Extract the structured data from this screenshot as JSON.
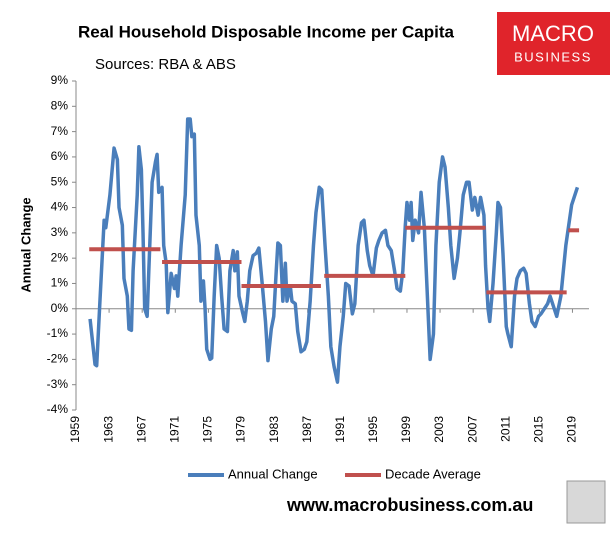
{
  "chart_data": {
    "type": "line",
    "title": "Real Household Disposable Income per Capita",
    "subtitle": "Sources: RBA & ABS",
    "y_label": "Annual Change",
    "xlim": [
      1959,
      2021
    ],
    "xticks": [
      1959,
      1963,
      1967,
      1971,
      1975,
      1979,
      1983,
      1987,
      1991,
      1995,
      1999,
      2003,
      2007,
      2011,
      2015,
      2019
    ],
    "ylim": [
      -4,
      9
    ],
    "yticks": [
      {
        "value": -4,
        "label": "-4%"
      },
      {
        "value": -3,
        "label": "-3%"
      },
      {
        "value": -2,
        "label": "-2%"
      },
      {
        "value": -1,
        "label": "-1%"
      },
      {
        "value": 0,
        "label": "0%"
      },
      {
        "value": 1,
        "label": "1%"
      },
      {
        "value": 2,
        "label": "2%"
      },
      {
        "value": 3,
        "label": "3%"
      },
      {
        "value": 4,
        "label": "4%"
      },
      {
        "value": 5,
        "label": "5%"
      },
      {
        "value": 6,
        "label": "6%"
      },
      {
        "value": 7,
        "label": "7%"
      },
      {
        "value": 8,
        "label": "8%"
      },
      {
        "value": 9,
        "label": "9%"
      }
    ],
    "legend": "bottom",
    "series": [
      {
        "name": "Annual Change",
        "color": "#4a7ebb",
        "x": [
          1960.7,
          1961.3,
          1961.5,
          1961.9,
          1962.4,
          1962.6,
          1963.1,
          1963.6,
          1964.0,
          1964.2,
          1964.6,
          1964.8,
          1965.2,
          1965.4,
          1965.7,
          1965.9,
          1966.4,
          1966.6,
          1966.9,
          1967.1,
          1967.3,
          1967.6,
          1967.8,
          1968.2,
          1968.6,
          1968.8,
          1969.0,
          1969.4,
          1969.6,
          1969.9,
          1970.1,
          1970.5,
          1970.9,
          1971.1,
          1971.3,
          1971.7,
          1972.2,
          1972.5,
          1972.8,
          1973.0,
          1973.3,
          1973.5,
          1973.9,
          1974.1,
          1974.4,
          1974.6,
          1974.8,
          1975.2,
          1975.4,
          1975.7,
          1976.0,
          1976.3,
          1976.6,
          1976.9,
          1977.3,
          1977.6,
          1978.0,
          1978.2,
          1978.5,
          1978.7,
          1979.1,
          1979.4,
          1979.7,
          1980.0,
          1980.4,
          1980.8,
          1981.1,
          1981.5,
          1981.9,
          1982.2,
          1982.6,
          1982.9,
          1983.2,
          1983.4,
          1983.7,
          1984.0,
          1984.3,
          1984.5,
          1984.9,
          1985.1,
          1985.5,
          1985.8,
          1986.2,
          1986.6,
          1986.9,
          1987.3,
          1987.7,
          1988.0,
          1988.4,
          1988.7,
          1989.1,
          1989.5,
          1989.8,
          1990.2,
          1990.6,
          1990.9,
          1991.3,
          1991.6,
          1992.0,
          1992.4,
          1992.7,
          1993.1,
          1993.5,
          1993.8,
          1994.2,
          1994.5,
          1994.9,
          1995.3,
          1995.6,
          1996.0,
          1996.4,
          1996.7,
          1997.1,
          1997.5,
          1997.8,
          1998.2,
          1998.5,
          1998.8,
          1999.0,
          1999.3,
          1999.5,
          1999.7,
          2000.0,
          2000.4,
          2000.7,
          2001.1,
          2001.4,
          2001.8,
          2002.2,
          2002.5,
          2002.9,
          2003.3,
          2003.6,
          2004.0,
          2004.3,
          2004.7,
          2005.1,
          2005.4,
          2005.8,
          2006.2,
          2006.5,
          2006.9,
          2007.2,
          2007.6,
          2007.9,
          2008.3,
          2008.5,
          2008.8,
          2009.0,
          2009.4,
          2009.8,
          2010.0,
          2010.3,
          2010.6,
          2011.0,
          2011.2,
          2011.6,
          2012.0,
          2012.3,
          2012.7,
          2013.1,
          2013.4,
          2013.8,
          2014.1,
          2014.5,
          2014.9,
          2015.2,
          2015.6,
          2016.0,
          2016.3,
          2016.7,
          2017.1,
          2017.6,
          2018.2,
          2018.9,
          2019.6
        ],
        "values": [
          -0.4,
          -2.2,
          -2.25,
          0.35,
          3.5,
          3.2,
          4.5,
          6.35,
          5.9,
          4.0,
          3.3,
          1.2,
          0.5,
          -0.8,
          -0.85,
          1.5,
          4.5,
          6.4,
          5.5,
          3.0,
          0.0,
          -0.3,
          1.5,
          5.0,
          5.8,
          6.1,
          4.6,
          4.8,
          2.5,
          1.8,
          -0.15,
          1.4,
          0.8,
          1.3,
          0.5,
          2.5,
          4.5,
          7.5,
          7.5,
          6.8,
          6.9,
          3.7,
          2.5,
          0.3,
          1.1,
          0.0,
          -1.6,
          -2.0,
          -1.95,
          0.5,
          2.5,
          2.0,
          0.5,
          -0.8,
          -0.9,
          1.5,
          2.3,
          1.5,
          2.25,
          0.5,
          -0.1,
          -0.5,
          0.3,
          1.5,
          2.1,
          2.2,
          2.4,
          1.0,
          -0.5,
          -2.05,
          -0.8,
          -0.3,
          1.5,
          2.6,
          2.5,
          0.3,
          1.8,
          0.3,
          0.9,
          0.3,
          0.2,
          -0.9,
          -1.7,
          -1.6,
          -1.3,
          0.3,
          2.5,
          3.8,
          4.8,
          4.7,
          2.5,
          0.5,
          -1.5,
          -2.3,
          -2.9,
          -1.5,
          -0.3,
          1.0,
          0.9,
          -0.2,
          0.2,
          2.5,
          3.4,
          3.5,
          2.3,
          1.7,
          1.3,
          2.4,
          2.7,
          3.0,
          3.1,
          2.5,
          2.3,
          1.5,
          0.8,
          0.7,
          1.5,
          3.3,
          4.2,
          3.5,
          4.2,
          2.7,
          3.5,
          3.0,
          4.6,
          3.2,
          1.0,
          -2.0,
          -1.0,
          2.5,
          5.0,
          6.0,
          5.6,
          4.0,
          2.5,
          1.2,
          2.0,
          3.0,
          4.5,
          5.0,
          5.0,
          3.9,
          4.4,
          3.7,
          4.4,
          3.7,
          1.7,
          0.0,
          -0.5,
          1.0,
          3.0,
          4.2,
          4.0,
          2.2,
          -0.7,
          -1.0,
          -1.5,
          0.5,
          1.2,
          1.5,
          1.6,
          1.4,
          0.2,
          -0.5,
          -0.7,
          -0.3,
          -0.2,
          0.0,
          0.2,
          0.5,
          0.1,
          -0.3,
          0.5,
          2.5,
          4.1,
          4.8
        ]
      },
      {
        "name": "Decade Average",
        "color": "#c0504d",
        "segments": [
          {
            "x": [
              1960.6,
              1969.2
            ],
            "value": 2.35
          },
          {
            "x": [
              1969.4,
              1979.0
            ],
            "value": 1.85
          },
          {
            "x": [
              1979.0,
              1988.6
            ],
            "value": 0.9
          },
          {
            "x": [
              1989.0,
              1998.8
            ],
            "value": 1.3
          },
          {
            "x": [
              1998.8,
              2008.5
            ],
            "value": 3.2
          },
          {
            "x": [
              2008.6,
              2018.3
            ],
            "value": 0.65
          },
          {
            "x": [
              2018.5,
              2019.8
            ],
            "value": 3.1
          }
        ]
      }
    ]
  },
  "branding": {
    "logo_top": "MACRO",
    "logo_bottom": "BUSINESS",
    "url": "www.macrobusiness.com.au"
  }
}
